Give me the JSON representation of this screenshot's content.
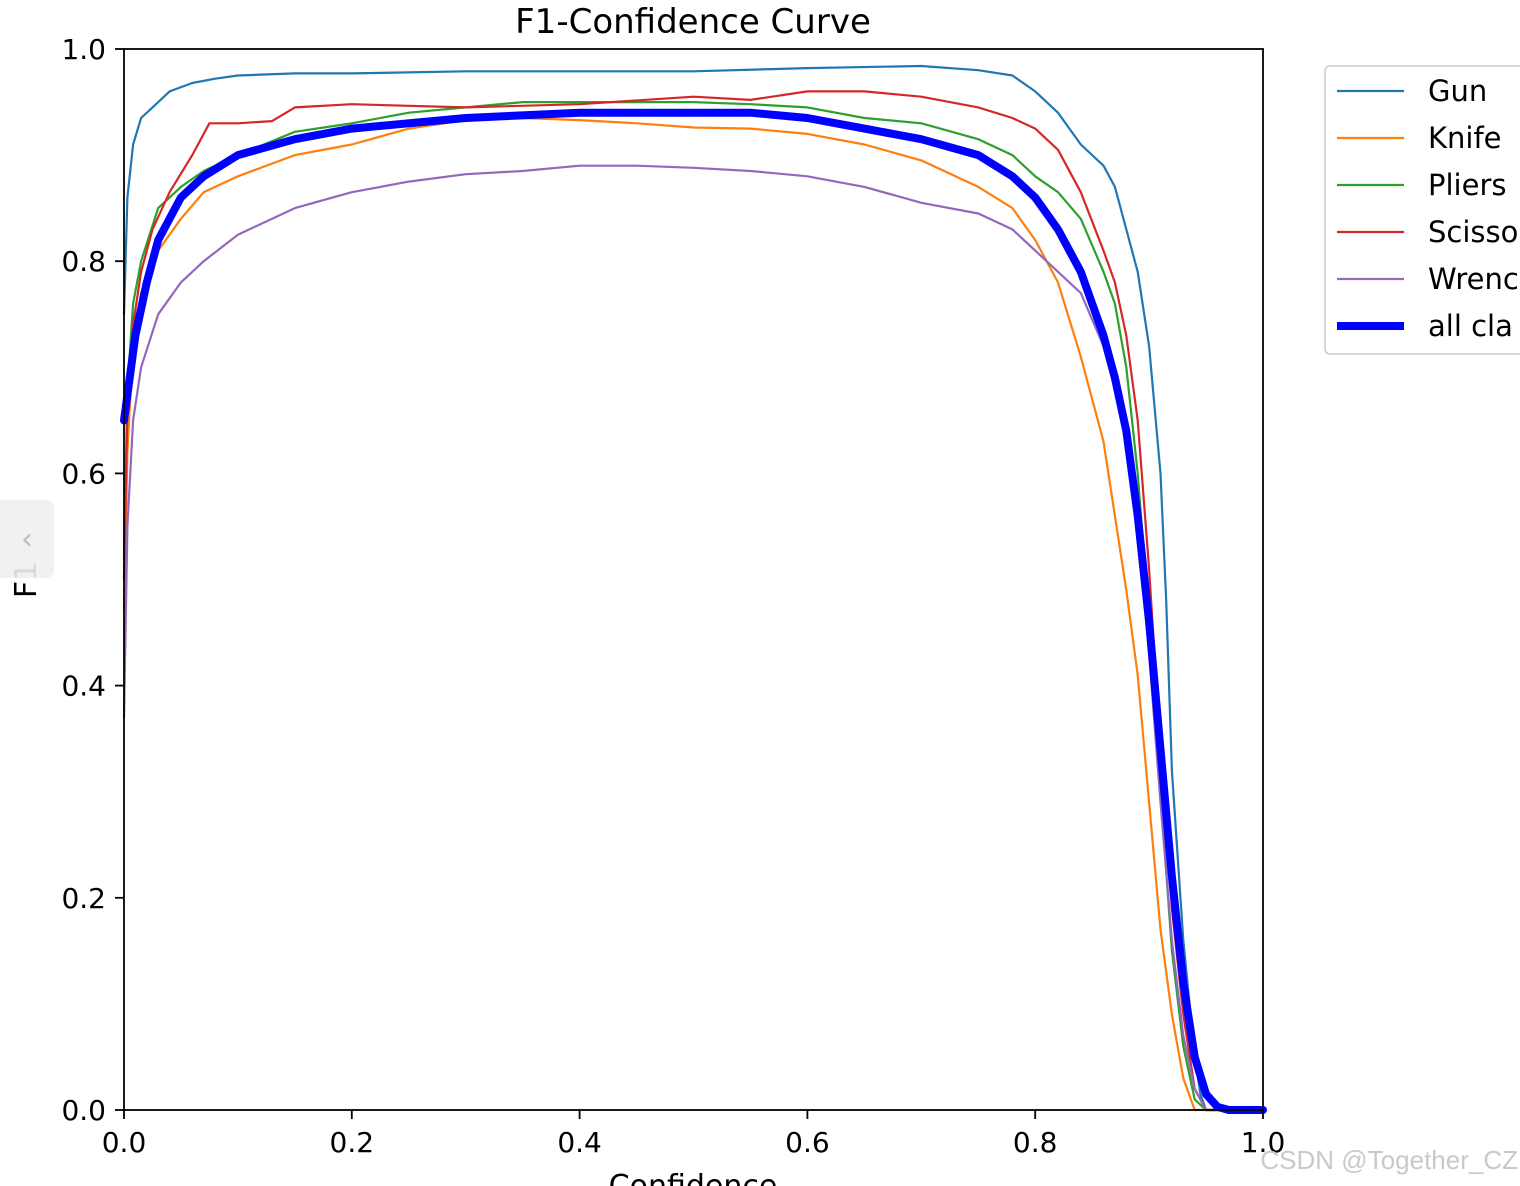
{
  "chart_data": {
    "type": "line",
    "title": "F1-Confidence Curve",
    "xlabel": "Confidence",
    "ylabel": "F1",
    "xlim": [
      0,
      1
    ],
    "ylim": [
      0,
      1
    ],
    "xticks": [
      "0.0",
      "0.2",
      "0.4",
      "0.6",
      "0.8",
      "1.0"
    ],
    "yticks": [
      "0.0",
      "0.2",
      "0.4",
      "0.6",
      "0.8",
      "1.0"
    ],
    "grid": false,
    "legend_position": "outside-top-right",
    "series": [
      {
        "name": "Gun",
        "color": "#1f77b4",
        "width": "thin",
        "points": [
          [
            0.0,
            0.75
          ],
          [
            0.003,
            0.86
          ],
          [
            0.008,
            0.91
          ],
          [
            0.015,
            0.935
          ],
          [
            0.025,
            0.945
          ],
          [
            0.04,
            0.96
          ],
          [
            0.06,
            0.968
          ],
          [
            0.08,
            0.972
          ],
          [
            0.1,
            0.975
          ],
          [
            0.15,
            0.977
          ],
          [
            0.2,
            0.977
          ],
          [
            0.3,
            0.979
          ],
          [
            0.4,
            0.979
          ],
          [
            0.5,
            0.979
          ],
          [
            0.6,
            0.982
          ],
          [
            0.7,
            0.984
          ],
          [
            0.75,
            0.98
          ],
          [
            0.78,
            0.975
          ],
          [
            0.8,
            0.96
          ],
          [
            0.82,
            0.94
          ],
          [
            0.84,
            0.91
          ],
          [
            0.86,
            0.89
          ],
          [
            0.87,
            0.87
          ],
          [
            0.88,
            0.83
          ],
          [
            0.89,
            0.79
          ],
          [
            0.9,
            0.72
          ],
          [
            0.91,
            0.6
          ],
          [
            0.915,
            0.48
          ],
          [
            0.92,
            0.32
          ],
          [
            0.93,
            0.16
          ],
          [
            0.94,
            0.05
          ],
          [
            0.945,
            0.015
          ],
          [
            0.95,
            0.0
          ],
          [
            1.0,
            0.0
          ]
        ]
      },
      {
        "name": "Knife",
        "color": "#ff7f0e",
        "width": "thin",
        "points": [
          [
            0.0,
            0.47
          ],
          [
            0.003,
            0.62
          ],
          [
            0.008,
            0.72
          ],
          [
            0.015,
            0.77
          ],
          [
            0.03,
            0.81
          ],
          [
            0.05,
            0.84
          ],
          [
            0.07,
            0.865
          ],
          [
            0.1,
            0.88
          ],
          [
            0.15,
            0.9
          ],
          [
            0.2,
            0.91
          ],
          [
            0.25,
            0.925
          ],
          [
            0.3,
            0.933
          ],
          [
            0.35,
            0.935
          ],
          [
            0.4,
            0.933
          ],
          [
            0.45,
            0.93
          ],
          [
            0.5,
            0.926
          ],
          [
            0.55,
            0.925
          ],
          [
            0.6,
            0.92
          ],
          [
            0.65,
            0.91
          ],
          [
            0.7,
            0.895
          ],
          [
            0.75,
            0.87
          ],
          [
            0.78,
            0.85
          ],
          [
            0.8,
            0.82
          ],
          [
            0.82,
            0.78
          ],
          [
            0.84,
            0.71
          ],
          [
            0.86,
            0.63
          ],
          [
            0.87,
            0.56
          ],
          [
            0.88,
            0.49
          ],
          [
            0.89,
            0.41
          ],
          [
            0.9,
            0.29
          ],
          [
            0.91,
            0.17
          ],
          [
            0.92,
            0.09
          ],
          [
            0.93,
            0.03
          ],
          [
            0.94,
            0.0
          ],
          [
            1.0,
            0.0
          ]
        ]
      },
      {
        "name": "Pliers",
        "color": "#2ca02c",
        "width": "thin",
        "points": [
          [
            0.0,
            0.52
          ],
          [
            0.003,
            0.68
          ],
          [
            0.008,
            0.76
          ],
          [
            0.015,
            0.8
          ],
          [
            0.03,
            0.85
          ],
          [
            0.05,
            0.87
          ],
          [
            0.07,
            0.885
          ],
          [
            0.1,
            0.9
          ],
          [
            0.15,
            0.922
          ],
          [
            0.2,
            0.93
          ],
          [
            0.25,
            0.94
          ],
          [
            0.3,
            0.945
          ],
          [
            0.35,
            0.95
          ],
          [
            0.4,
            0.95
          ],
          [
            0.45,
            0.95
          ],
          [
            0.5,
            0.95
          ],
          [
            0.55,
            0.948
          ],
          [
            0.6,
            0.945
          ],
          [
            0.65,
            0.935
          ],
          [
            0.7,
            0.93
          ],
          [
            0.75,
            0.915
          ],
          [
            0.78,
            0.9
          ],
          [
            0.8,
            0.88
          ],
          [
            0.82,
            0.865
          ],
          [
            0.84,
            0.84
          ],
          [
            0.86,
            0.79
          ],
          [
            0.87,
            0.76
          ],
          [
            0.88,
            0.7
          ],
          [
            0.89,
            0.6
          ],
          [
            0.9,
            0.46
          ],
          [
            0.91,
            0.3
          ],
          [
            0.92,
            0.15
          ],
          [
            0.93,
            0.06
          ],
          [
            0.94,
            0.01
          ],
          [
            0.95,
            0.0
          ],
          [
            1.0,
            0.0
          ]
        ]
      },
      {
        "name": "Scissors",
        "color": "#d62728",
        "width": "thin",
        "points": [
          [
            0.0,
            0.5
          ],
          [
            0.003,
            0.66
          ],
          [
            0.008,
            0.74
          ],
          [
            0.015,
            0.79
          ],
          [
            0.025,
            0.83
          ],
          [
            0.04,
            0.865
          ],
          [
            0.06,
            0.9
          ],
          [
            0.075,
            0.93
          ],
          [
            0.1,
            0.93
          ],
          [
            0.13,
            0.932
          ],
          [
            0.15,
            0.945
          ],
          [
            0.2,
            0.948
          ],
          [
            0.23,
            0.947
          ],
          [
            0.3,
            0.945
          ],
          [
            0.4,
            0.948
          ],
          [
            0.5,
            0.955
          ],
          [
            0.55,
            0.952
          ],
          [
            0.6,
            0.96
          ],
          [
            0.65,
            0.96
          ],
          [
            0.7,
            0.955
          ],
          [
            0.75,
            0.945
          ],
          [
            0.78,
            0.935
          ],
          [
            0.8,
            0.925
          ],
          [
            0.82,
            0.905
          ],
          [
            0.84,
            0.865
          ],
          [
            0.86,
            0.81
          ],
          [
            0.87,
            0.78
          ],
          [
            0.88,
            0.73
          ],
          [
            0.89,
            0.65
          ],
          [
            0.9,
            0.51
          ],
          [
            0.91,
            0.34
          ],
          [
            0.92,
            0.19
          ],
          [
            0.93,
            0.09
          ],
          [
            0.94,
            0.02
          ],
          [
            0.95,
            0.0
          ],
          [
            1.0,
            0.0
          ]
        ]
      },
      {
        "name": "Wrench",
        "color": "#9467bd",
        "width": "thin",
        "points": [
          [
            0.0,
            0.37
          ],
          [
            0.003,
            0.55
          ],
          [
            0.008,
            0.65
          ],
          [
            0.015,
            0.7
          ],
          [
            0.03,
            0.75
          ],
          [
            0.05,
            0.78
          ],
          [
            0.07,
            0.8
          ],
          [
            0.1,
            0.825
          ],
          [
            0.15,
            0.85
          ],
          [
            0.2,
            0.865
          ],
          [
            0.25,
            0.875
          ],
          [
            0.3,
            0.882
          ],
          [
            0.35,
            0.885
          ],
          [
            0.4,
            0.89
          ],
          [
            0.45,
            0.89
          ],
          [
            0.5,
            0.888
          ],
          [
            0.55,
            0.885
          ],
          [
            0.6,
            0.88
          ],
          [
            0.65,
            0.87
          ],
          [
            0.7,
            0.855
          ],
          [
            0.75,
            0.845
          ],
          [
            0.78,
            0.83
          ],
          [
            0.8,
            0.81
          ],
          [
            0.82,
            0.79
          ],
          [
            0.84,
            0.77
          ],
          [
            0.86,
            0.72
          ],
          [
            0.87,
            0.68
          ],
          [
            0.88,
            0.63
          ],
          [
            0.89,
            0.55
          ],
          [
            0.9,
            0.43
          ],
          [
            0.91,
            0.29
          ],
          [
            0.92,
            0.16
          ],
          [
            0.93,
            0.07
          ],
          [
            0.94,
            0.02
          ],
          [
            0.95,
            0.0
          ],
          [
            1.0,
            0.0
          ]
        ]
      },
      {
        "name": "all classes",
        "color": "#0000ff",
        "width": "thick",
        "points": [
          [
            0.0,
            0.65
          ],
          [
            0.005,
            0.69
          ],
          [
            0.01,
            0.73
          ],
          [
            0.02,
            0.78
          ],
          [
            0.03,
            0.82
          ],
          [
            0.05,
            0.86
          ],
          [
            0.07,
            0.88
          ],
          [
            0.1,
            0.9
          ],
          [
            0.15,
            0.915
          ],
          [
            0.2,
            0.925
          ],
          [
            0.3,
            0.935
          ],
          [
            0.4,
            0.94
          ],
          [
            0.5,
            0.94
          ],
          [
            0.55,
            0.94
          ],
          [
            0.6,
            0.935
          ],
          [
            0.65,
            0.925
          ],
          [
            0.7,
            0.915
          ],
          [
            0.75,
            0.9
          ],
          [
            0.78,
            0.88
          ],
          [
            0.8,
            0.86
          ],
          [
            0.82,
            0.83
          ],
          [
            0.84,
            0.79
          ],
          [
            0.86,
            0.73
          ],
          [
            0.87,
            0.69
          ],
          [
            0.88,
            0.64
          ],
          [
            0.89,
            0.56
          ],
          [
            0.9,
            0.46
          ],
          [
            0.91,
            0.34
          ],
          [
            0.92,
            0.22
          ],
          [
            0.93,
            0.12
          ],
          [
            0.94,
            0.05
          ],
          [
            0.95,
            0.015
          ],
          [
            0.96,
            0.003
          ],
          [
            0.97,
            0.0
          ],
          [
            1.0,
            0.0
          ]
        ]
      }
    ]
  },
  "legend": {
    "visible_labels": [
      "Gun",
      "Knife",
      "Pliers",
      "Scisso",
      "Wrenc",
      "all cla"
    ]
  },
  "watermark": "CSDN @Together_CZ",
  "nav_arrow_glyph": "‹"
}
